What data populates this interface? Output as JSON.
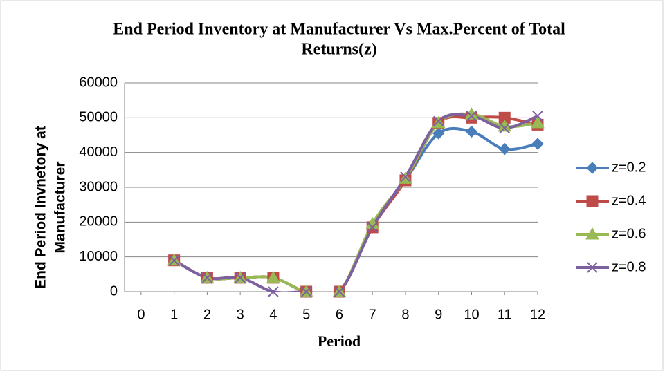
{
  "chart_data": {
    "type": "line",
    "title_lines": [
      "End Period Inventory at Manufacturer Vs Max.Percent of Total",
      "Returns(z)"
    ],
    "y_label_lines": [
      "End Period Invnetory at",
      "Manufacturer"
    ],
    "x_label": "Period",
    "x": [
      1,
      2,
      3,
      4,
      5,
      6,
      7,
      8,
      9,
      10,
      11,
      12
    ],
    "series": [
      {
        "name": "z=0.2",
        "color": "#4a7ebb",
        "marker": "diamond",
        "values": [
          9000,
          4000,
          4000,
          4000,
          0,
          0,
          18500,
          32000,
          45500,
          46000,
          41000,
          42500
        ]
      },
      {
        "name": "z=0.4",
        "color": "#be4b48",
        "marker": "square",
        "values": [
          9000,
          4000,
          4000,
          4000,
          0,
          0,
          18500,
          32000,
          48500,
          50000,
          50000,
          48000
        ]
      },
      {
        "name": "z=0.6",
        "color": "#98b954",
        "marker": "triangle",
        "values": [
          9000,
          4000,
          4000,
          4000,
          0,
          0,
          19500,
          32500,
          48500,
          51000,
          47500,
          48500
        ]
      },
      {
        "name": "z=0.8",
        "color": "#7d60a0",
        "marker": "x",
        "values": [
          9000,
          4000,
          4000,
          0,
          0,
          0,
          18500,
          33000,
          49000,
          50500,
          47000,
          50500
        ]
      }
    ],
    "xlim": [
      -0.5,
      12
    ],
    "xticks": [
      0,
      1,
      2,
      3,
      4,
      5,
      6,
      7,
      8,
      9,
      10,
      11,
      12
    ],
    "ylim": [
      0,
      60000
    ],
    "yticks": [
      0,
      10000,
      20000,
      30000,
      40000,
      50000,
      60000
    ],
    "grid": true,
    "smooth": true,
    "legend": "right"
  }
}
